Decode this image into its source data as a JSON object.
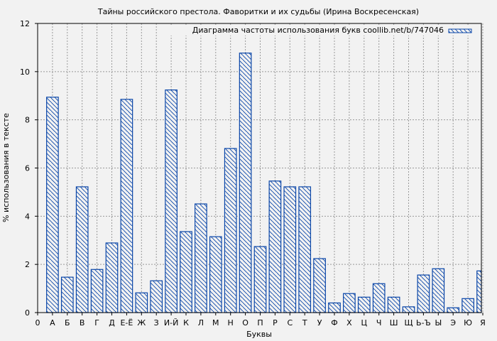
{
  "chart_data": {
    "type": "bar",
    "title": "Тайны российского престола. Фаворитки и их судьбы (Ирина Воскресенская)",
    "xlabel": "Буквы",
    "ylabel": "% использования в тексте",
    "ylim": [
      0,
      12
    ],
    "yticks": [
      0,
      2,
      4,
      6,
      8,
      10,
      12
    ],
    "grid": true,
    "legend": {
      "position": "upper right",
      "entries": [
        "Диаграмма частоты использования букв coollib.net/b/747046"
      ]
    },
    "categories": [
      "0",
      "А",
      "Б",
      "В",
      "Г",
      "Д",
      "Е-Ё",
      "Ж",
      "З",
      "И-Й",
      "К",
      "Л",
      "М",
      "Н",
      "О",
      "П",
      "Р",
      "С",
      "Т",
      "У",
      "Ф",
      "Х",
      "Ц",
      "Ч",
      "Ш",
      "Щ",
      "Ь-Ъ",
      "Ы",
      "Э",
      "Ю",
      "Я"
    ],
    "series": [
      {
        "name": "Диаграмма частоты использования букв coollib.net/b/747046",
        "values": [
          0,
          8.94,
          1.47,
          5.22,
          1.79,
          2.89,
          8.85,
          0.82,
          1.32,
          9.24,
          3.36,
          4.51,
          3.15,
          6.81,
          10.77,
          2.74,
          5.46,
          5.22,
          5.22,
          2.24,
          0.4,
          0.79,
          0.64,
          1.2,
          0.64,
          0.24,
          1.56,
          1.82,
          0.2,
          0.58,
          1.73
        ]
      }
    ],
    "colors": {
      "bar_edge": "#0a46a8",
      "hatch": "#0a46a8",
      "bar_fill": "#f2f2f2",
      "grid": "#999999",
      "background": "#f2f2f2"
    }
  }
}
